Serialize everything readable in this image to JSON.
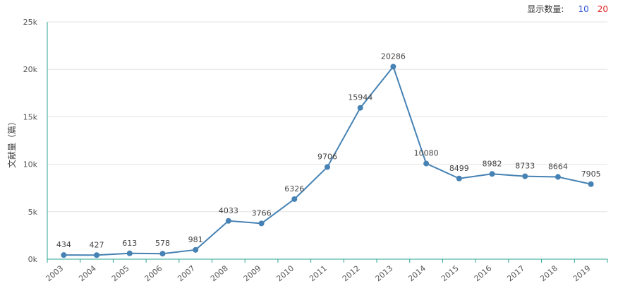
{
  "display_count": {
    "label": "显示数量:",
    "options": [
      "10",
      "20"
    ],
    "option_colors": [
      "#2d52d6",
      "#e02020"
    ]
  },
  "chart_data": {
    "type": "line",
    "x": [
      "2003",
      "2004",
      "2005",
      "2006",
      "2007",
      "2008",
      "2009",
      "2010",
      "2011",
      "2012",
      "2013",
      "2014",
      "2015",
      "2016",
      "2017",
      "2018",
      "2019"
    ],
    "series": [
      {
        "values": [
          434,
          427,
          613,
          578,
          981,
          4033,
          3766,
          6326,
          9706,
          15944,
          20286,
          10080,
          8499,
          8982,
          8733,
          8664,
          7905
        ]
      }
    ],
    "ylabel": "文献量（篇）",
    "ylim": [
      0,
      25000
    ],
    "y_ticks": [
      0,
      5000,
      10000,
      15000,
      20000,
      25000
    ],
    "y_tick_labels": [
      "0k",
      "5k",
      "10k",
      "15k",
      "20k",
      "25k"
    ],
    "grid": true,
    "show_data_labels": true,
    "colors": {
      "line": "#4682b4",
      "point": "#4682b4",
      "grid": "#e3e3e3",
      "x_axis": "#2aa595",
      "y_axis": "#2aa595"
    }
  }
}
